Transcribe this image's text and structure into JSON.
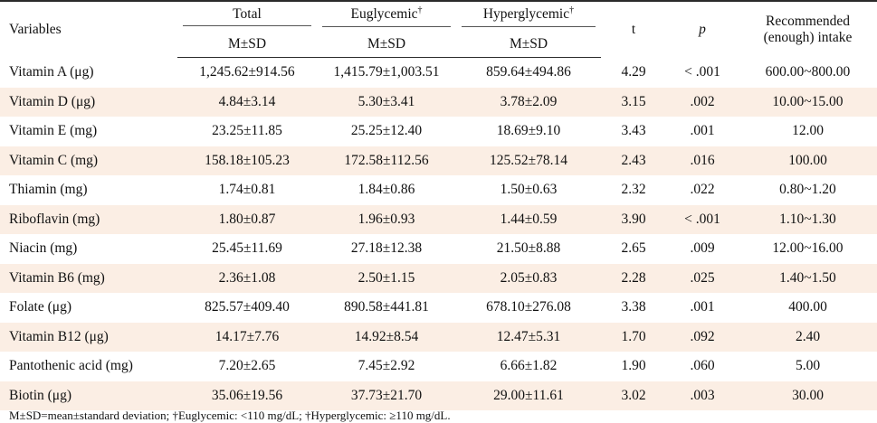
{
  "headers": {
    "variables": "Variables",
    "total": "Total",
    "euglycemic": "Euglycemic",
    "euglycemic_mark": "†",
    "hyperglycemic": "Hyperglycemic",
    "hyperglycemic_mark": "†",
    "msd": "M±SD",
    "t": "t",
    "p": "p",
    "recommended_line1": "Recommended",
    "recommended_line2": "(enough) intake"
  },
  "rows": [
    {
      "var": "Vitamin A (μg)",
      "total": "1,245.62±914.56",
      "eu": "1,415.79±1,003.51",
      "hyper": "859.64±494.86",
      "t": "4.29",
      "p": "< .001",
      "rec": "600.00~800.00"
    },
    {
      "var": "Vitamin D (μg)",
      "total": "4.84±3.14",
      "eu": "5.30±3.41",
      "hyper": "3.78±2.09",
      "t": "3.15",
      "p": ".002",
      "rec": "10.00~15.00"
    },
    {
      "var": "Vitamin E (mg)",
      "total": "23.25±11.85",
      "eu": "25.25±12.40",
      "hyper": "18.69±9.10",
      "t": "3.43",
      "p": ".001",
      "rec": "12.00"
    },
    {
      "var": "Vitamin C (mg)",
      "total": "158.18±105.23",
      "eu": "172.58±112.56",
      "hyper": "125.52±78.14",
      "t": "2.43",
      "p": ".016",
      "rec": "100.00"
    },
    {
      "var": "Thiamin (mg)",
      "total": "1.74±0.81",
      "eu": "1.84±0.86",
      "hyper": "1.50±0.63",
      "t": "2.32",
      "p": ".022",
      "rec": "0.80~1.20"
    },
    {
      "var": "Riboflavin (mg)",
      "total": "1.80±0.87",
      "eu": "1.96±0.93",
      "hyper": "1.44±0.59",
      "t": "3.90",
      "p": "< .001",
      "rec": "1.10~1.30"
    },
    {
      "var": "Niacin (mg)",
      "total": "25.45±11.69",
      "eu": "27.18±12.38",
      "hyper": "21.50±8.88",
      "t": "2.65",
      "p": ".009",
      "rec": "12.00~16.00"
    },
    {
      "var": "Vitamin B6 (mg)",
      "total": "2.36±1.08",
      "eu": "2.50±1.15",
      "hyper": "2.05±0.83",
      "t": "2.28",
      "p": ".025",
      "rec": "1.40~1.50"
    },
    {
      "var": "Folate (μg)",
      "total": "825.57±409.40",
      "eu": "890.58±441.81",
      "hyper": "678.10±276.08",
      "t": "3.38",
      "p": ".001",
      "rec": "400.00"
    },
    {
      "var": "Vitamin B12 (μg)",
      "total": "14.17±7.76",
      "eu": "14.92±8.54",
      "hyper": "12.47±5.31",
      "t": "1.70",
      "p": ".092",
      "rec": "2.40"
    },
    {
      "var": "Pantothenic acid (mg)",
      "total": "7.20±2.65",
      "eu": "7.45±2.92",
      "hyper": "6.66±1.82",
      "t": "1.90",
      "p": ".060",
      "rec": "5.00"
    },
    {
      "var": "Biotin (μg)",
      "total": "35.06±19.56",
      "eu": "37.73±21.70",
      "hyper": "29.00±11.61",
      "t": "3.02",
      "p": ".003",
      "rec": "30.00"
    }
  ],
  "footnote": "M±SD=mean±standard deviation; †Euglycemic: <110 mg/dL; †Hyperglycemic: ≥110 mg/dL."
}
